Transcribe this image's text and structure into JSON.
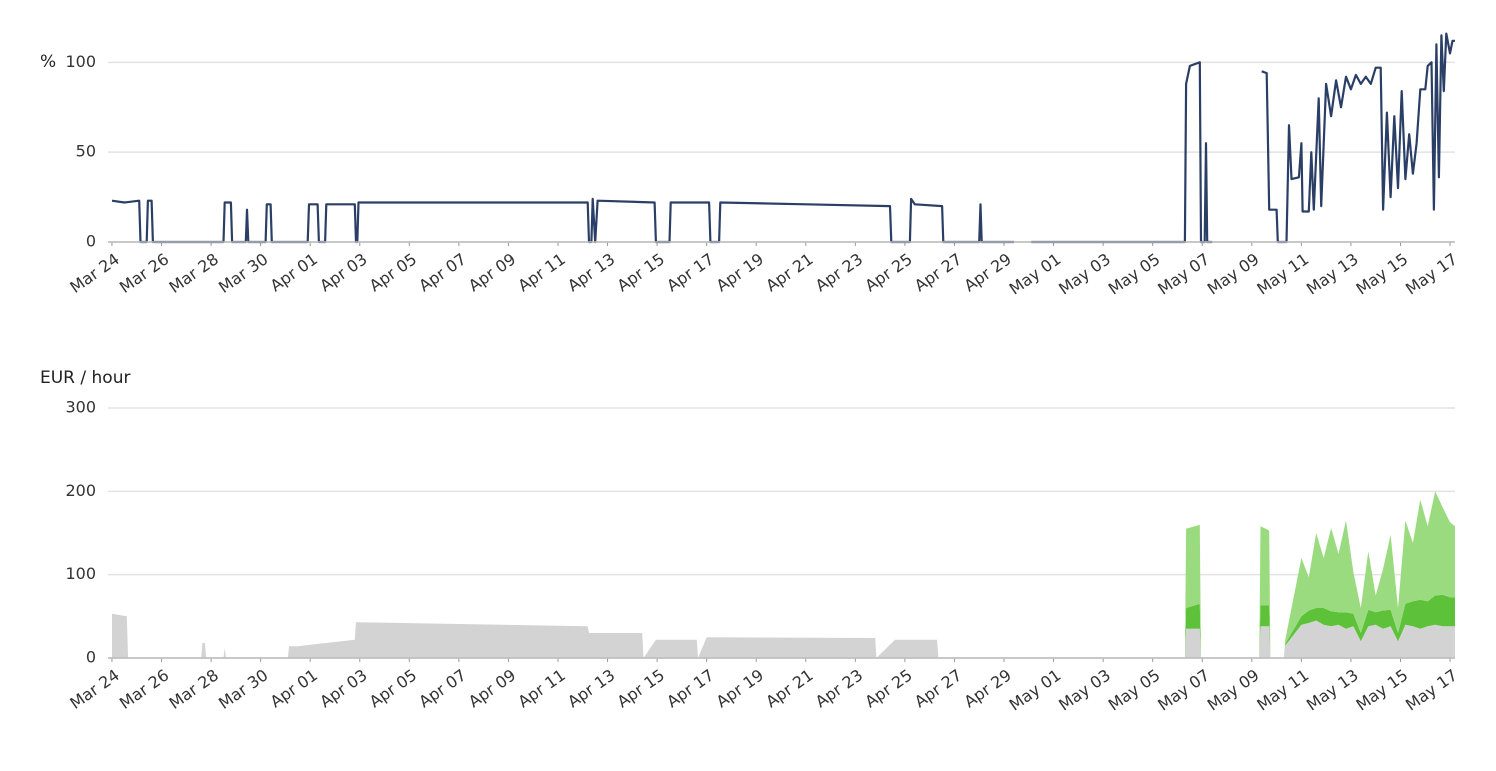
{
  "chart_data": [
    {
      "type": "line",
      "ylabel": "%",
      "grid": true,
      "xlim": [
        -0.16,
        54.2
      ],
      "ylim": [
        0,
        118
      ],
      "yticks": [
        0,
        50,
        100
      ],
      "xticks": [
        {
          "value": 0,
          "label": "Mar 24"
        },
        {
          "value": 2,
          "label": "Mar 26"
        },
        {
          "value": 4,
          "label": "Mar 28"
        },
        {
          "value": 6,
          "label": "Mar 30"
        },
        {
          "value": 8,
          "label": "Apr 01"
        },
        {
          "value": 10,
          "label": "Apr 03"
        },
        {
          "value": 12,
          "label": "Apr 05"
        },
        {
          "value": 14,
          "label": "Apr 07"
        },
        {
          "value": 16,
          "label": "Apr 09"
        },
        {
          "value": 18,
          "label": "Apr 11"
        },
        {
          "value": 20,
          "label": "Apr 13"
        },
        {
          "value": 22,
          "label": "Apr 15"
        },
        {
          "value": 24,
          "label": "Apr 17"
        },
        {
          "value": 26,
          "label": "Apr 19"
        },
        {
          "value": 28,
          "label": "Apr 21"
        },
        {
          "value": 30,
          "label": "Apr 23"
        },
        {
          "value": 32,
          "label": "Apr 25"
        },
        {
          "value": 34,
          "label": "Apr 27"
        },
        {
          "value": 36,
          "label": "Apr 29"
        },
        {
          "value": 38,
          "label": "May 01"
        },
        {
          "value": 40,
          "label": "May 03"
        },
        {
          "value": 42,
          "label": "May 05"
        },
        {
          "value": 44,
          "label": "May 07"
        },
        {
          "value": 46,
          "label": "May 09"
        },
        {
          "value": 48,
          "label": "May 11"
        },
        {
          "value": 50,
          "label": "May 13"
        },
        {
          "value": 52,
          "label": "May 15"
        },
        {
          "value": 54,
          "label": "May 17"
        }
      ],
      "x": [
        0,
        0.5,
        1.1,
        1.15,
        1.4,
        1.45,
        1.6,
        1.65,
        4.5,
        4.55,
        4.8,
        4.85,
        5.4,
        5.45,
        5.5,
        6.2,
        6.25,
        6.4,
        6.45,
        7.9,
        7.95,
        8.3,
        8.35,
        8.6,
        8.65,
        9.8,
        9.85,
        9.9,
        9.95,
        14,
        19.2,
        19.25,
        19.35,
        19.4,
        19.5,
        19.6,
        21.9,
        21.95,
        22.5,
        22.55,
        24.1,
        24.15,
        24.5,
        24.55,
        28,
        31.4,
        31.45,
        32.2,
        32.25,
        32.4,
        33.5,
        33.55,
        35.0,
        35.05,
        35.1,
        36.4,
        36.7,
        37.1,
        43.3,
        43.35,
        43.5,
        43.9,
        43.95,
        44.1,
        44.15,
        44.2,
        44.4,
        45,
        46.4,
        46.6,
        46.7,
        47.0,
        47.05,
        47.4,
        47.5,
        47.6,
        47.9,
        48.0,
        48.05,
        48.3,
        48.4,
        48.5,
        48.7,
        48.8,
        49.0,
        49.2,
        49.4,
        49.6,
        49.8,
        50.0,
        50.2,
        50.4,
        50.6,
        50.8,
        51.0,
        51.2,
        51.3,
        51.45,
        51.6,
        51.75,
        51.9,
        52.05,
        52.2,
        52.35,
        52.5,
        52.65,
        52.8,
        53.0,
        53.1,
        53.25,
        53.35,
        53.45,
        53.55,
        53.65,
        53.75,
        53.85,
        54.0,
        54.1,
        54.2
      ],
      "series": [
        {
          "color": "#2b3f66",
          "values": [
            23,
            22,
            23,
            0,
            0,
            23,
            23,
            0,
            0,
            22,
            22,
            0,
            0,
            18,
            0,
            0,
            21,
            21,
            0,
            0,
            21,
            21,
            0,
            0,
            21,
            21,
            0,
            0,
            22,
            22,
            22,
            0,
            0,
            24,
            0,
            23,
            22,
            0,
            0,
            22,
            22,
            0,
            0,
            22,
            21,
            20,
            0,
            0,
            24,
            21,
            20,
            0,
            0,
            21,
            0,
            0,
            null,
            0,
            0,
            88,
            98,
            100,
            0,
            0,
            55,
            0,
            0,
            null,
            95,
            94,
            18,
            18,
            0,
            0,
            65,
            35,
            36,
            55,
            17,
            17,
            50,
            18,
            80,
            20,
            88,
            70,
            90,
            75,
            92,
            85,
            93,
            88,
            92,
            88,
            97,
            97,
            18,
            72,
            25,
            70,
            30,
            84,
            35,
            60,
            38,
            55,
            85,
            85,
            98,
            100,
            18,
            110,
            36,
            115,
            84,
            116,
            105,
            112,
            112
          ]
        }
      ]
    },
    {
      "type": "stacked_area",
      "ylabel": "EUR / hour",
      "grid": true,
      "xlim": [
        -0.16,
        54.2
      ],
      "ylim": [
        0,
        300
      ],
      "yticks": [
        0,
        100,
        200,
        300
      ],
      "xticks": [
        {
          "value": 0,
          "label": "Mar 24"
        },
        {
          "value": 2,
          "label": "Mar 26"
        },
        {
          "value": 4,
          "label": "Mar 28"
        },
        {
          "value": 6,
          "label": "Mar 30"
        },
        {
          "value": 8,
          "label": "Apr 01"
        },
        {
          "value": 10,
          "label": "Apr 03"
        },
        {
          "value": 12,
          "label": "Apr 05"
        },
        {
          "value": 14,
          "label": "Apr 07"
        },
        {
          "value": 16,
          "label": "Apr 09"
        },
        {
          "value": 18,
          "label": "Apr 11"
        },
        {
          "value": 20,
          "label": "Apr 13"
        },
        {
          "value": 22,
          "label": "Apr 15"
        },
        {
          "value": 24,
          "label": "Apr 17"
        },
        {
          "value": 26,
          "label": "Apr 19"
        },
        {
          "value": 28,
          "label": "Apr 21"
        },
        {
          "value": 30,
          "label": "Apr 23"
        },
        {
          "value": 32,
          "label": "Apr 25"
        },
        {
          "value": 34,
          "label": "Apr 27"
        },
        {
          "value": 36,
          "label": "Apr 29"
        },
        {
          "value": 38,
          "label": "May 01"
        },
        {
          "value": 40,
          "label": "May 03"
        },
        {
          "value": 42,
          "label": "May 05"
        },
        {
          "value": 44,
          "label": "May 07"
        },
        {
          "value": 46,
          "label": "May 09"
        },
        {
          "value": 48,
          "label": "May 11"
        },
        {
          "value": 50,
          "label": "May 13"
        },
        {
          "value": 52,
          "label": "May 15"
        },
        {
          "value": 54,
          "label": "May 17"
        }
      ],
      "x": [
        0,
        0.6,
        0.65,
        3.6,
        3.65,
        3.75,
        3.8,
        4.5,
        4.55,
        4.6,
        7.1,
        7.15,
        7.5,
        8.0,
        9.8,
        9.85,
        19.2,
        19.25,
        21.4,
        21.45,
        21.95,
        23.6,
        23.65,
        24.0,
        30.8,
        30.85,
        31.6,
        32.3,
        33.3,
        33.35,
        43.3,
        43.35,
        43.9,
        43.95,
        46.3,
        46.35,
        46.7,
        46.75,
        47.3,
        47.35,
        48.0,
        48.3,
        48.6,
        48.9,
        49.2,
        49.5,
        49.8,
        50.1,
        50.4,
        50.7,
        51.0,
        51.3,
        51.6,
        51.9,
        52.2,
        52.5,
        52.8,
        53.1,
        53.4,
        53.7,
        54.0,
        54.2
      ],
      "series": [
        {
          "color": "#d3d3d3",
          "values": [
            53,
            50,
            0,
            0,
            18,
            18,
            0,
            0,
            12,
            0,
            0,
            14,
            14,
            16,
            22,
            43,
            38,
            30,
            30,
            0,
            22,
            22,
            0,
            25,
            24,
            0,
            22,
            22,
            22,
            0,
            0,
            35,
            35,
            0,
            0,
            38,
            38,
            0,
            0,
            15,
            40,
            42,
            45,
            40,
            38,
            40,
            35,
            38,
            20,
            38,
            40,
            35,
            38,
            20,
            40,
            38,
            35,
            38,
            40,
            38,
            38,
            38
          ]
        },
        {
          "color": "#5dc23a",
          "values": [
            0,
            0,
            0,
            0,
            0,
            0,
            0,
            0,
            0,
            0,
            0,
            0,
            0,
            0,
            0,
            0,
            0,
            0,
            0,
            0,
            0,
            0,
            0,
            0,
            0,
            0,
            0,
            0,
            0,
            0,
            0,
            25,
            30,
            0,
            0,
            25,
            25,
            0,
            0,
            2,
            10,
            15,
            15,
            20,
            18,
            15,
            20,
            15,
            10,
            20,
            15,
            22,
            20,
            10,
            25,
            30,
            35,
            30,
            35,
            38,
            35,
            35
          ]
        },
        {
          "color": "#9bdb7f",
          "values": [
            0,
            0,
            0,
            0,
            0,
            0,
            0,
            0,
            0,
            0,
            0,
            0,
            0,
            0,
            0,
            0,
            0,
            0,
            0,
            0,
            0,
            0,
            0,
            0,
            0,
            0,
            0,
            0,
            0,
            0,
            0,
            95,
            95,
            0,
            0,
            95,
            90,
            0,
            0,
            5,
            70,
            40,
            90,
            60,
            100,
            70,
            110,
            50,
            30,
            70,
            20,
            50,
            90,
            30,
            100,
            70,
            120,
            90,
            125,
            105,
            90,
            85
          ]
        }
      ]
    }
  ]
}
